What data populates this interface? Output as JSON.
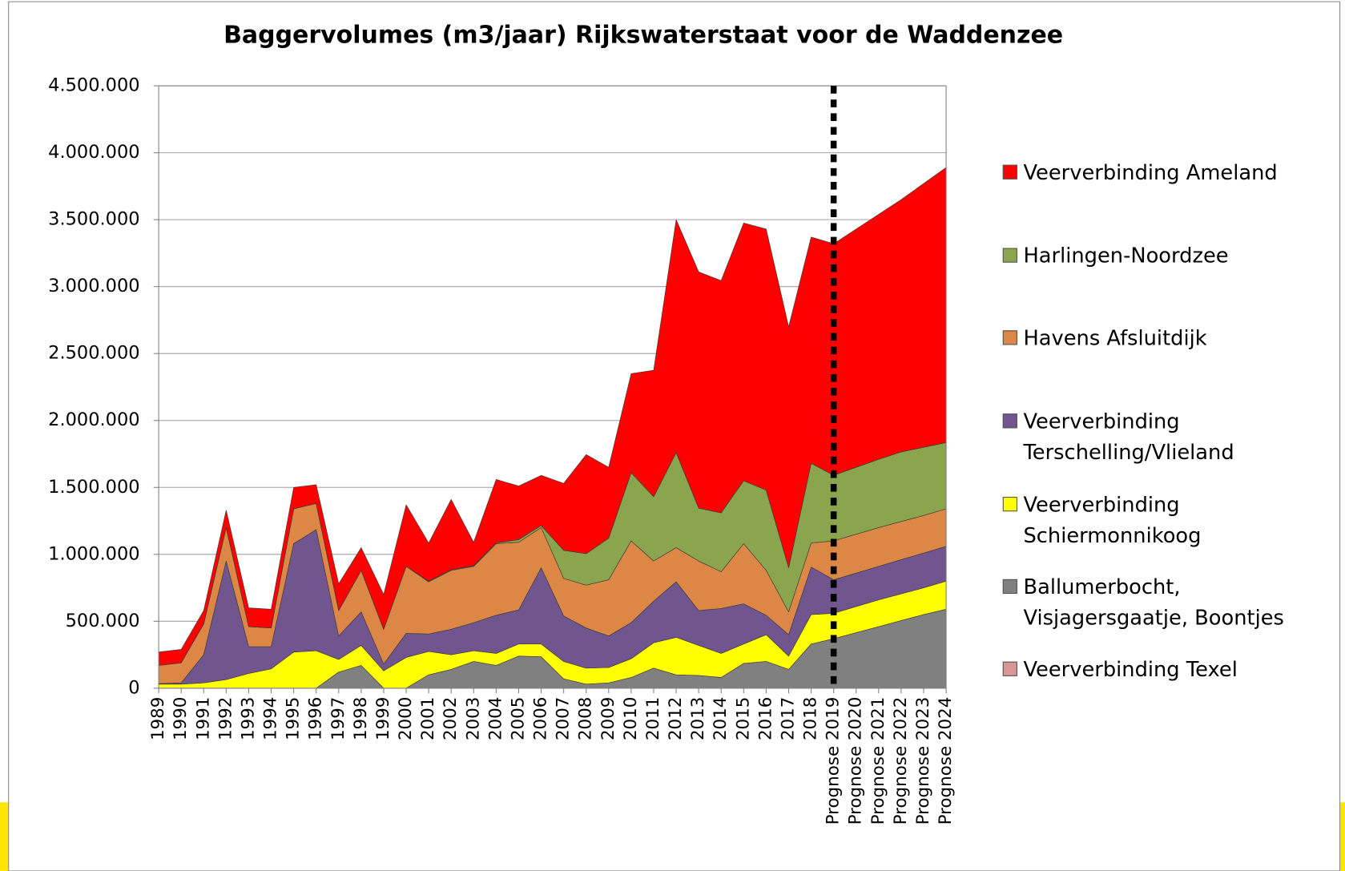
{
  "chart_data": {
    "type": "stacked-area",
    "title": "Baggervolumes (m3/jaar) Rijkswaterstaat voor de Waddenzee",
    "categories": [
      "1989",
      "1990",
      "1991",
      "1992",
      "1993",
      "1994",
      "1995",
      "1996",
      "1997",
      "1998",
      "1999",
      "2000",
      "2001",
      "2002",
      "2003",
      "2004",
      "2005",
      "2006",
      "2007",
      "2008",
      "2009",
      "2010",
      "2011",
      "2012",
      "2013",
      "2014",
      "2015",
      "2016",
      "2017",
      "2018",
      "Prognose 2019",
      "Prognose 2020",
      "Prognose 2021",
      "Prognose 2022",
      "Prognose 2023",
      "Prognose 2024"
    ],
    "series": [
      {
        "name": "Veerverbinding Texel",
        "color": "#d99694",
        "values": [
          0,
          0,
          0,
          0,
          0,
          0,
          0,
          0,
          0,
          0,
          0,
          0,
          0,
          0,
          0,
          0,
          0,
          0,
          0,
          0,
          0,
          0,
          0,
          0,
          0,
          0,
          0,
          0,
          0,
          0,
          0,
          0,
          0,
          0,
          0,
          0
        ]
      },
      {
        "name": "Ballumerbocht, Visjagersgaatje, Boontjes",
        "color": "#808080",
        "values": [
          0,
          0,
          0,
          0,
          0,
          0,
          0,
          0,
          120000,
          170000,
          0,
          0,
          100000,
          140000,
          200000,
          170000,
          240000,
          235000,
          70000,
          30000,
          40000,
          80000,
          150000,
          100000,
          95000,
          80000,
          185000,
          200000,
          140000,
          330000,
          370000,
          415000,
          460000,
          505000,
          550000,
          590000
        ]
      },
      {
        "name": "Veerverbinding Schiermonnikoog",
        "color": "#ffff00",
        "values": [
          30000,
          30000,
          40000,
          65000,
          110000,
          145000,
          270000,
          280000,
          95000,
          150000,
          130000,
          230000,
          175000,
          110000,
          80000,
          90000,
          90000,
          95000,
          130000,
          120000,
          115000,
          140000,
          190000,
          280000,
          225000,
          180000,
          145000,
          200000,
          100000,
          220000,
          190000,
          195000,
          200000,
          200000,
          200000,
          210000
        ]
      },
      {
        "name": "Veerverbinding Terschelling/Vlieland",
        "color": "#70558f",
        "values": [
          5000,
          10000,
          210000,
          885000,
          200000,
          165000,
          810000,
          905000,
          175000,
          250000,
          50000,
          180000,
          130000,
          190000,
          210000,
          285000,
          255000,
          570000,
          340000,
          300000,
          235000,
          270000,
          310000,
          415000,
          260000,
          335000,
          300000,
          145000,
          160000,
          355000,
          250000,
          250000,
          250000,
          255000,
          260000,
          260000
        ]
      },
      {
        "name": "Havens Afsluitdijk",
        "color": "#dd8746",
        "values": [
          135000,
          150000,
          230000,
          250000,
          150000,
          140000,
          260000,
          195000,
          190000,
          310000,
          260000,
          500000,
          390000,
          440000,
          420000,
          535000,
          505000,
          300000,
          280000,
          320000,
          420000,
          610000,
          300000,
          255000,
          370000,
          275000,
          450000,
          335000,
          170000,
          180000,
          290000,
          290000,
          290000,
          285000,
          280000,
          280000
        ]
      },
      {
        "name": "Harlingen-Noordzee",
        "color": "#8aa54e",
        "values": [
          0,
          0,
          0,
          0,
          0,
          0,
          0,
          0,
          0,
          0,
          0,
          0,
          5000,
          5000,
          5000,
          5000,
          20000,
          15000,
          210000,
          235000,
          310000,
          510000,
          480000,
          710000,
          395000,
          440000,
          470000,
          600000,
          330000,
          595000,
          490000,
          500000,
          510000,
          520000,
          510000,
          495000
        ]
      },
      {
        "name": "Veerverbinding Ameland",
        "color": "#ff0000",
        "values": [
          100000,
          100000,
          100000,
          130000,
          140000,
          140000,
          160000,
          140000,
          200000,
          170000,
          260000,
          460000,
          285000,
          525000,
          175000,
          475000,
          400000,
          375000,
          500000,
          740000,
          530000,
          740000,
          945000,
          1740000,
          1765000,
          1735000,
          1925000,
          1950000,
          1800000,
          1690000,
          1730000,
          1780000,
          1830000,
          1885000,
          1970000,
          2055000
        ]
      }
    ],
    "ylim": [
      0,
      4500000
    ],
    "yticks": [
      0,
      {
        "value": 500000,
        "label": "500.000"
      },
      {
        "value": 1000000,
        "label": "1.000.000"
      },
      {
        "value": 1500000,
        "label": "1.500.000"
      },
      {
        "value": 2000000,
        "label": "2.000.000"
      },
      {
        "value": 2500000,
        "label": "2.500.000"
      },
      {
        "value": 3000000,
        "label": "3.000.000"
      },
      {
        "value": 3500000,
        "label": "3.500.000"
      },
      {
        "value": 4000000,
        "label": "4.000.000"
      },
      {
        "value": 4500000,
        "label": "4.500.000"
      }
    ],
    "grid": true,
    "legend": "right"
  }
}
